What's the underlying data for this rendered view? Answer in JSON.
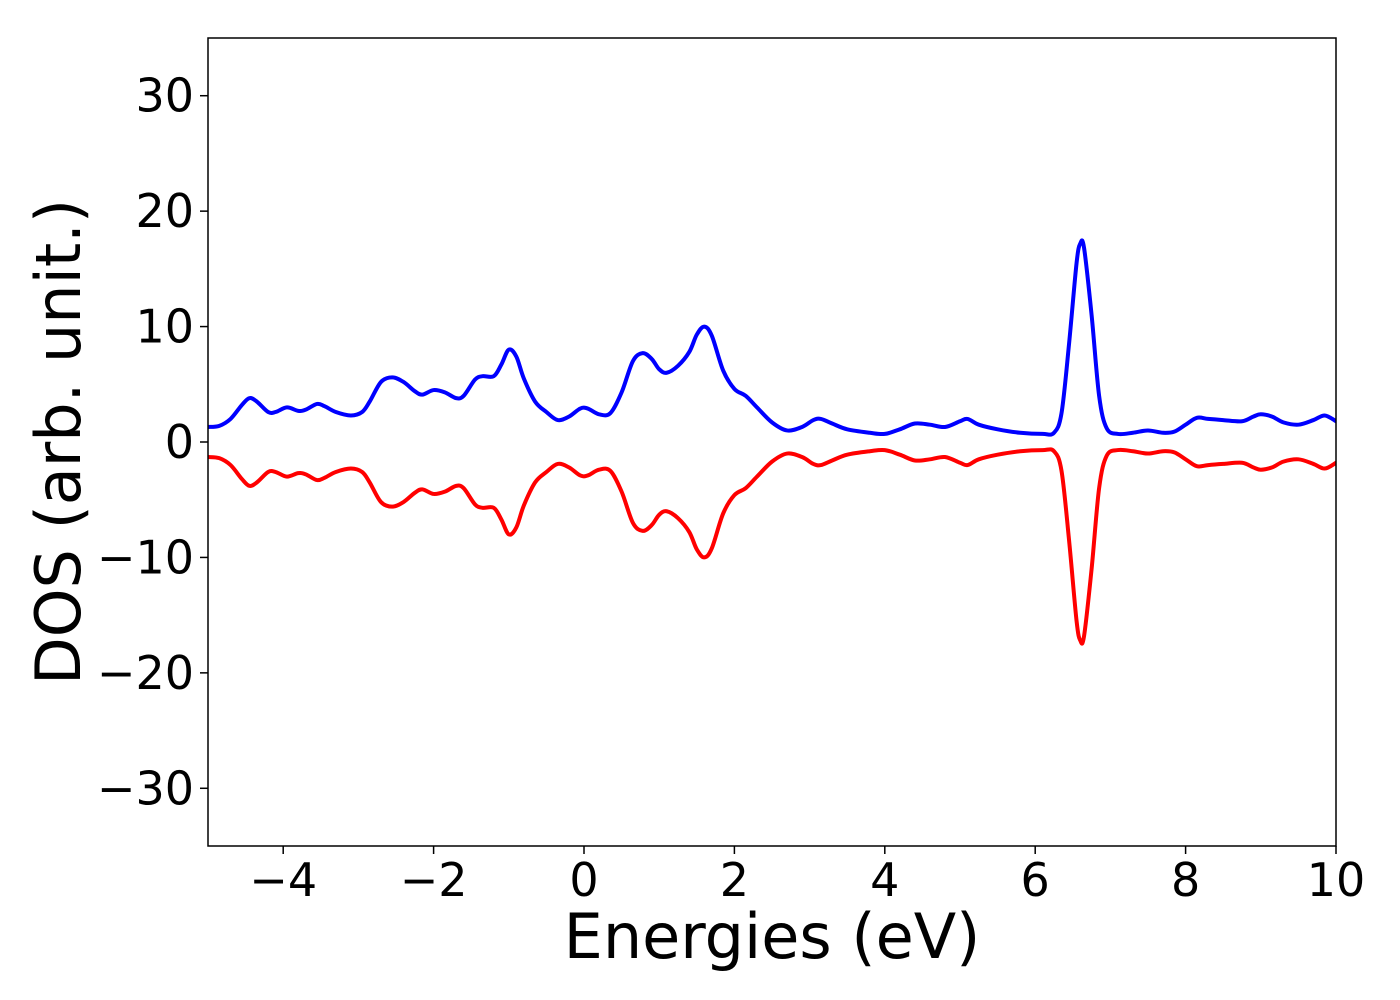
{
  "chart_data": {
    "type": "line",
    "xlabel": "Energies (eV)",
    "ylabel": "DOS (arb. unit.)",
    "xlim": [
      -5,
      10
    ],
    "ylim": [
      -35,
      35
    ],
    "xticks": [
      -4,
      -2,
      0,
      2,
      4,
      6,
      8,
      10
    ],
    "yticks": [
      -30,
      -20,
      -10,
      0,
      10,
      20,
      30
    ],
    "xtick_labels": [
      "−4",
      "−2",
      "0",
      "2",
      "4",
      "6",
      "8",
      "10"
    ],
    "ytick_labels": [
      "−30",
      "−20",
      "−10",
      "0",
      "10",
      "20",
      "30"
    ],
    "grid": false,
    "series": [
      {
        "color": "#0000ff",
        "points": [
          [
            -5.0,
            1.3
          ],
          [
            -4.85,
            1.4
          ],
          [
            -4.7,
            2.0
          ],
          [
            -4.55,
            3.2
          ],
          [
            -4.45,
            3.8
          ],
          [
            -4.35,
            3.5
          ],
          [
            -4.2,
            2.6
          ],
          [
            -4.1,
            2.6
          ],
          [
            -3.95,
            3.0
          ],
          [
            -3.8,
            2.7
          ],
          [
            -3.7,
            2.8
          ],
          [
            -3.55,
            3.3
          ],
          [
            -3.45,
            3.1
          ],
          [
            -3.3,
            2.6
          ],
          [
            -3.1,
            2.3
          ],
          [
            -2.95,
            2.6
          ],
          [
            -2.85,
            3.5
          ],
          [
            -2.7,
            5.2
          ],
          [
            -2.55,
            5.6
          ],
          [
            -2.4,
            5.2
          ],
          [
            -2.25,
            4.4
          ],
          [
            -2.15,
            4.1
          ],
          [
            -2.0,
            4.5
          ],
          [
            -1.85,
            4.3
          ],
          [
            -1.7,
            3.8
          ],
          [
            -1.6,
            4.0
          ],
          [
            -1.45,
            5.4
          ],
          [
            -1.35,
            5.7
          ],
          [
            -1.2,
            5.7
          ],
          [
            -1.1,
            6.7
          ],
          [
            -1.0,
            8.0
          ],
          [
            -0.9,
            7.4
          ],
          [
            -0.8,
            5.5
          ],
          [
            -0.65,
            3.5
          ],
          [
            -0.5,
            2.6
          ],
          [
            -0.35,
            1.9
          ],
          [
            -0.2,
            2.2
          ],
          [
            -0.05,
            2.9
          ],
          [
            0.05,
            2.9
          ],
          [
            0.2,
            2.4
          ],
          [
            0.35,
            2.5
          ],
          [
            0.5,
            4.3
          ],
          [
            0.65,
            7.0
          ],
          [
            0.78,
            7.7
          ],
          [
            0.9,
            7.2
          ],
          [
            1.0,
            6.3
          ],
          [
            1.1,
            6.0
          ],
          [
            1.25,
            6.6
          ],
          [
            1.4,
            7.8
          ],
          [
            1.5,
            9.3
          ],
          [
            1.6,
            10.0
          ],
          [
            1.7,
            9.2
          ],
          [
            1.85,
            6.2
          ],
          [
            2.0,
            4.6
          ],
          [
            2.15,
            4.0
          ],
          [
            2.3,
            3.0
          ],
          [
            2.5,
            1.7
          ],
          [
            2.7,
            1.0
          ],
          [
            2.9,
            1.3
          ],
          [
            3.05,
            1.9
          ],
          [
            3.15,
            2.0
          ],
          [
            3.3,
            1.6
          ],
          [
            3.5,
            1.1
          ],
          [
            3.8,
            0.8
          ],
          [
            4.0,
            0.7
          ],
          [
            4.2,
            1.1
          ],
          [
            4.4,
            1.6
          ],
          [
            4.6,
            1.5
          ],
          [
            4.8,
            1.3
          ],
          [
            5.0,
            1.8
          ],
          [
            5.1,
            2.0
          ],
          [
            5.25,
            1.5
          ],
          [
            5.5,
            1.1
          ],
          [
            5.8,
            0.8
          ],
          [
            6.1,
            0.7
          ],
          [
            6.25,
            0.8
          ],
          [
            6.35,
            2.5
          ],
          [
            6.45,
            8.5
          ],
          [
            6.55,
            15.5
          ],
          [
            6.6,
            17.2
          ],
          [
            6.65,
            16.8
          ],
          [
            6.75,
            11.0
          ],
          [
            6.85,
            4.0
          ],
          [
            6.95,
            1.2
          ],
          [
            7.1,
            0.7
          ],
          [
            7.3,
            0.8
          ],
          [
            7.5,
            1.0
          ],
          [
            7.7,
            0.8
          ],
          [
            7.85,
            0.9
          ],
          [
            8.0,
            1.5
          ],
          [
            8.15,
            2.1
          ],
          [
            8.3,
            2.0
          ],
          [
            8.5,
            1.9
          ],
          [
            8.75,
            1.8
          ],
          [
            8.9,
            2.2
          ],
          [
            9.0,
            2.4
          ],
          [
            9.15,
            2.2
          ],
          [
            9.3,
            1.7
          ],
          [
            9.5,
            1.5
          ],
          [
            9.7,
            1.9
          ],
          [
            9.85,
            2.3
          ],
          [
            10.0,
            1.8
          ]
        ]
      },
      {
        "color": "#ff0000",
        "points": [
          [
            -5.0,
            -1.3
          ],
          [
            -4.85,
            -1.4
          ],
          [
            -4.7,
            -2.0
          ],
          [
            -4.55,
            -3.2
          ],
          [
            -4.45,
            -3.8
          ],
          [
            -4.35,
            -3.5
          ],
          [
            -4.2,
            -2.6
          ],
          [
            -4.1,
            -2.6
          ],
          [
            -3.95,
            -3.0
          ],
          [
            -3.8,
            -2.7
          ],
          [
            -3.7,
            -2.8
          ],
          [
            -3.55,
            -3.3
          ],
          [
            -3.45,
            -3.1
          ],
          [
            -3.3,
            -2.6
          ],
          [
            -3.1,
            -2.3
          ],
          [
            -2.95,
            -2.6
          ],
          [
            -2.85,
            -3.5
          ],
          [
            -2.7,
            -5.2
          ],
          [
            -2.55,
            -5.6
          ],
          [
            -2.4,
            -5.2
          ],
          [
            -2.25,
            -4.4
          ],
          [
            -2.15,
            -4.1
          ],
          [
            -2.0,
            -4.5
          ],
          [
            -1.85,
            -4.3
          ],
          [
            -1.7,
            -3.8
          ],
          [
            -1.6,
            -4.0
          ],
          [
            -1.45,
            -5.4
          ],
          [
            -1.35,
            -5.7
          ],
          [
            -1.2,
            -5.7
          ],
          [
            -1.1,
            -6.7
          ],
          [
            -1.0,
            -8.0
          ],
          [
            -0.9,
            -7.4
          ],
          [
            -0.8,
            -5.5
          ],
          [
            -0.65,
            -3.5
          ],
          [
            -0.5,
            -2.6
          ],
          [
            -0.35,
            -1.9
          ],
          [
            -0.2,
            -2.2
          ],
          [
            -0.05,
            -2.9
          ],
          [
            0.05,
            -2.9
          ],
          [
            0.2,
            -2.4
          ],
          [
            0.35,
            -2.5
          ],
          [
            0.5,
            -4.3
          ],
          [
            0.65,
            -7.0
          ],
          [
            0.78,
            -7.7
          ],
          [
            0.9,
            -7.2
          ],
          [
            1.0,
            -6.3
          ],
          [
            1.1,
            -6.0
          ],
          [
            1.25,
            -6.6
          ],
          [
            1.4,
            -7.8
          ],
          [
            1.5,
            -9.3
          ],
          [
            1.6,
            -10.0
          ],
          [
            1.7,
            -9.2
          ],
          [
            1.85,
            -6.2
          ],
          [
            2.0,
            -4.6
          ],
          [
            2.15,
            -4.0
          ],
          [
            2.3,
            -3.0
          ],
          [
            2.5,
            -1.7
          ],
          [
            2.7,
            -1.0
          ],
          [
            2.9,
            -1.3
          ],
          [
            3.05,
            -1.9
          ],
          [
            3.15,
            -2.0
          ],
          [
            3.3,
            -1.6
          ],
          [
            3.5,
            -1.1
          ],
          [
            3.8,
            -0.8
          ],
          [
            4.0,
            -0.7
          ],
          [
            4.2,
            -1.1
          ],
          [
            4.4,
            -1.6
          ],
          [
            4.6,
            -1.5
          ],
          [
            4.8,
            -1.3
          ],
          [
            5.0,
            -1.8
          ],
          [
            5.1,
            -2.0
          ],
          [
            5.25,
            -1.5
          ],
          [
            5.5,
            -1.1
          ],
          [
            5.8,
            -0.8
          ],
          [
            6.1,
            -0.7
          ],
          [
            6.25,
            -0.8
          ],
          [
            6.35,
            -2.5
          ],
          [
            6.45,
            -8.5
          ],
          [
            6.55,
            -15.5
          ],
          [
            6.6,
            -17.2
          ],
          [
            6.65,
            -16.8
          ],
          [
            6.75,
            -11.0
          ],
          [
            6.85,
            -4.0
          ],
          [
            6.95,
            -1.2
          ],
          [
            7.1,
            -0.7
          ],
          [
            7.3,
            -0.8
          ],
          [
            7.5,
            -1.0
          ],
          [
            7.7,
            -0.8
          ],
          [
            7.85,
            -0.9
          ],
          [
            8.0,
            -1.5
          ],
          [
            8.15,
            -2.1
          ],
          [
            8.3,
            -2.0
          ],
          [
            8.5,
            -1.9
          ],
          [
            8.75,
            -1.8
          ],
          [
            8.9,
            -2.2
          ],
          [
            9.0,
            -2.4
          ],
          [
            9.15,
            -2.2
          ],
          [
            9.3,
            -1.7
          ],
          [
            9.5,
            -1.5
          ],
          [
            9.7,
            -1.9
          ],
          [
            9.85,
            -2.3
          ],
          [
            10.0,
            -1.8
          ]
        ]
      }
    ]
  }
}
